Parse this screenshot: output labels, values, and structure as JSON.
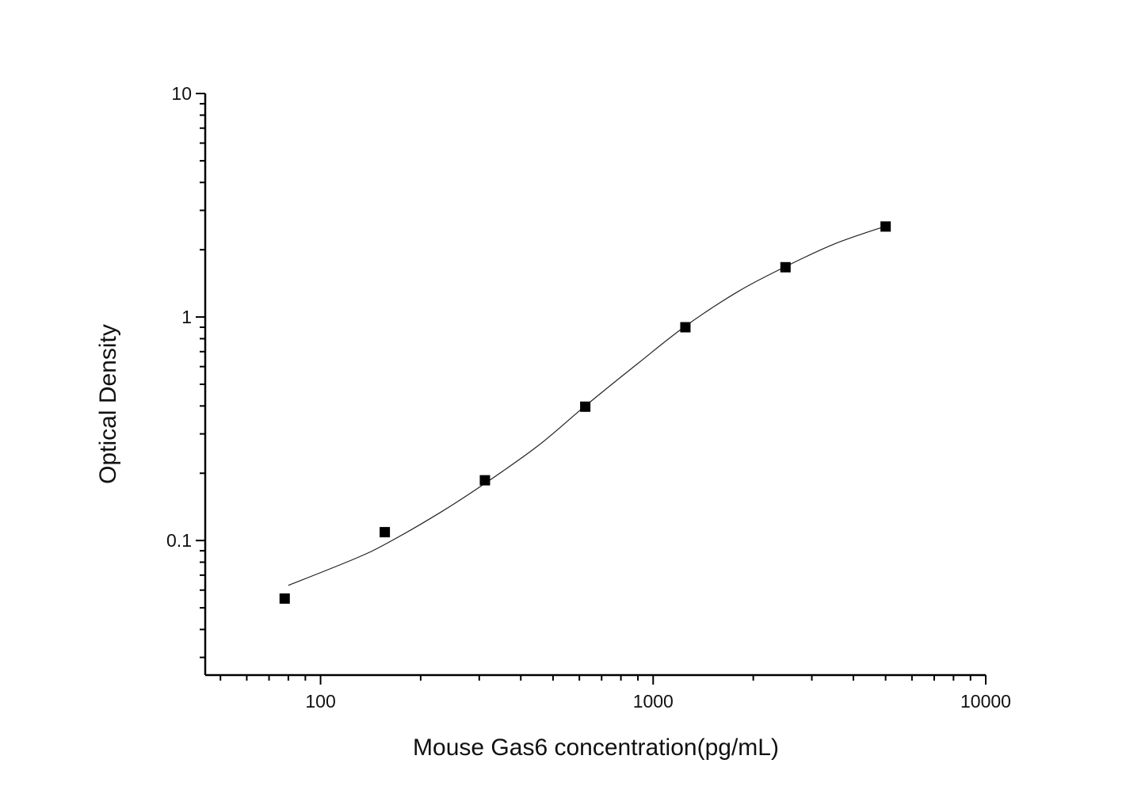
{
  "chart_data": {
    "type": "scatter",
    "title": "",
    "xlabel": "Mouse Gas6 concentration(pg/mL)",
    "ylabel": "Optical Density",
    "x_scale": "log",
    "y_scale": "log",
    "xlim": [
      45,
      10000
    ],
    "ylim": [
      0.025,
      10
    ],
    "x_ticks": [
      100,
      1000,
      10000
    ],
    "x_tick_labels": [
      "100",
      "1000",
      "10000"
    ],
    "y_ticks": [
      0.1,
      1,
      10
    ],
    "y_tick_labels": [
      "0.1",
      "1",
      "10"
    ],
    "grid": false,
    "legend": "none",
    "marker_color": "#000000",
    "series": [
      {
        "points": [
          {
            "x": 78,
            "y": 0.055
          },
          {
            "x": 156,
            "y": 0.109
          },
          {
            "x": 312,
            "y": 0.186
          },
          {
            "x": 625,
            "y": 0.397
          },
          {
            "x": 1250,
            "y": 0.9
          },
          {
            "x": 2500,
            "y": 1.67
          },
          {
            "x": 5000,
            "y": 2.54
          }
        ]
      }
    ],
    "fit_curve": [
      {
        "x": 80,
        "y": 0.063
      },
      {
        "x": 127,
        "y": 0.083
      },
      {
        "x": 160,
        "y": 0.098
      },
      {
        "x": 230,
        "y": 0.134
      },
      {
        "x": 312,
        "y": 0.18
      },
      {
        "x": 450,
        "y": 0.265
      },
      {
        "x": 625,
        "y": 0.4
      },
      {
        "x": 900,
        "y": 0.62
      },
      {
        "x": 1250,
        "y": 0.91
      },
      {
        "x": 1800,
        "y": 1.3
      },
      {
        "x": 2500,
        "y": 1.68
      },
      {
        "x": 3500,
        "y": 2.12
      },
      {
        "x": 5000,
        "y": 2.55
      }
    ]
  }
}
